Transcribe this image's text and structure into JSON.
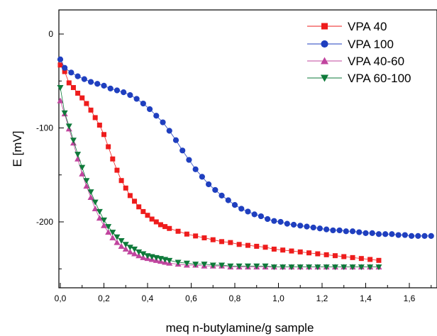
{
  "chart_data": {
    "type": "line",
    "xlabel": "meq n-butylamine/g sample",
    "ylabel": "E [mV]",
    "xlim": [
      0.0,
      1.7
    ],
    "ylim": [
      -270,
      25
    ],
    "x_ticks": [
      "0,0",
      "0,2",
      "0,4",
      "0,6",
      "0,8",
      "1,0",
      "1,2",
      "1,4",
      "1,6"
    ],
    "y_ticks": [
      {
        "value": 0,
        "label": "0"
      },
      {
        "value": -100,
        "label": "-100"
      },
      {
        "value": -200,
        "label": "-200"
      }
    ],
    "grid": false,
    "legend_position": "top-right",
    "series": [
      {
        "name": "VPA 40",
        "color": "#ee1c1c",
        "marker": "square",
        "points": [
          [
            0.0,
            -33
          ],
          [
            0.02,
            -40
          ],
          [
            0.04,
            -52
          ],
          [
            0.06,
            -57
          ],
          [
            0.08,
            -63
          ],
          [
            0.1,
            -68
          ],
          [
            0.12,
            -74
          ],
          [
            0.14,
            -81
          ],
          [
            0.16,
            -89
          ],
          [
            0.18,
            -97
          ],
          [
            0.2,
            -107
          ],
          [
            0.22,
            -120
          ],
          [
            0.24,
            -133
          ],
          [
            0.26,
            -145
          ],
          [
            0.28,
            -156
          ],
          [
            0.3,
            -164
          ],
          [
            0.32,
            -172
          ],
          [
            0.34,
            -178
          ],
          [
            0.36,
            -184
          ],
          [
            0.38,
            -189
          ],
          [
            0.4,
            -193
          ],
          [
            0.42,
            -197
          ],
          [
            0.44,
            -200
          ],
          [
            0.46,
            -203
          ],
          [
            0.48,
            -205
          ],
          [
            0.5,
            -207
          ],
          [
            0.54,
            -210
          ],
          [
            0.58,
            -213
          ],
          [
            0.62,
            -215
          ],
          [
            0.66,
            -217
          ],
          [
            0.7,
            -219
          ],
          [
            0.74,
            -221
          ],
          [
            0.78,
            -222
          ],
          [
            0.82,
            -224
          ],
          [
            0.86,
            -225
          ],
          [
            0.9,
            -226
          ],
          [
            0.94,
            -227
          ],
          [
            0.98,
            -229
          ],
          [
            1.02,
            -230
          ],
          [
            1.06,
            -231
          ],
          [
            1.1,
            -232
          ],
          [
            1.14,
            -233
          ],
          [
            1.18,
            -234
          ],
          [
            1.22,
            -235
          ],
          [
            1.26,
            -236
          ],
          [
            1.3,
            -237
          ],
          [
            1.34,
            -238
          ],
          [
            1.38,
            -239
          ],
          [
            1.42,
            -240
          ],
          [
            1.46,
            -241
          ]
        ]
      },
      {
        "name": "VPA 100",
        "color": "#1f3fbf",
        "marker": "circle",
        "points": [
          [
            0.0,
            -27
          ],
          [
            0.02,
            -36
          ],
          [
            0.05,
            -41
          ],
          [
            0.08,
            -45
          ],
          [
            0.11,
            -48
          ],
          [
            0.14,
            -51
          ],
          [
            0.17,
            -53
          ],
          [
            0.2,
            -55
          ],
          [
            0.23,
            -58
          ],
          [
            0.26,
            -60
          ],
          [
            0.29,
            -62
          ],
          [
            0.32,
            -65
          ],
          [
            0.35,
            -69
          ],
          [
            0.38,
            -74
          ],
          [
            0.41,
            -80
          ],
          [
            0.44,
            -87
          ],
          [
            0.47,
            -94
          ],
          [
            0.5,
            -103
          ],
          [
            0.53,
            -113
          ],
          [
            0.56,
            -124
          ],
          [
            0.59,
            -134
          ],
          [
            0.62,
            -144
          ],
          [
            0.65,
            -152
          ],
          [
            0.68,
            -160
          ],
          [
            0.71,
            -166
          ],
          [
            0.74,
            -172
          ],
          [
            0.77,
            -177
          ],
          [
            0.8,
            -182
          ],
          [
            0.83,
            -186
          ],
          [
            0.86,
            -189
          ],
          [
            0.89,
            -192
          ],
          [
            0.92,
            -194
          ],
          [
            0.95,
            -197
          ],
          [
            0.98,
            -199
          ],
          [
            1.01,
            -200
          ],
          [
            1.04,
            -202
          ],
          [
            1.07,
            -203
          ],
          [
            1.1,
            -204
          ],
          [
            1.13,
            -205
          ],
          [
            1.16,
            -206
          ],
          [
            1.19,
            -207
          ],
          [
            1.22,
            -208
          ],
          [
            1.25,
            -209
          ],
          [
            1.28,
            -209
          ],
          [
            1.31,
            -210
          ],
          [
            1.34,
            -210
          ],
          [
            1.37,
            -211
          ],
          [
            1.4,
            -212
          ],
          [
            1.43,
            -212
          ],
          [
            1.46,
            -213
          ],
          [
            1.49,
            -213
          ],
          [
            1.52,
            -213
          ],
          [
            1.55,
            -214
          ],
          [
            1.58,
            -214
          ],
          [
            1.61,
            -215
          ],
          [
            1.64,
            -215
          ],
          [
            1.67,
            -215
          ],
          [
            1.7,
            -215
          ]
        ]
      },
      {
        "name": "VPA 40-60",
        "color": "#c0449e",
        "marker": "triangle-up",
        "points": [
          [
            0.0,
            -71
          ],
          [
            0.02,
            -85
          ],
          [
            0.04,
            -101
          ],
          [
            0.06,
            -116
          ],
          [
            0.08,
            -133
          ],
          [
            0.1,
            -149
          ],
          [
            0.12,
            -162
          ],
          [
            0.14,
            -174
          ],
          [
            0.16,
            -186
          ],
          [
            0.18,
            -196
          ],
          [
            0.2,
            -204
          ],
          [
            0.22,
            -211
          ],
          [
            0.24,
            -217
          ],
          [
            0.26,
            -222
          ],
          [
            0.28,
            -226
          ],
          [
            0.3,
            -229
          ],
          [
            0.32,
            -232
          ],
          [
            0.34,
            -234
          ],
          [
            0.36,
            -236
          ],
          [
            0.38,
            -238
          ],
          [
            0.4,
            -239
          ],
          [
            0.42,
            -240
          ],
          [
            0.44,
            -241
          ],
          [
            0.46,
            -242
          ],
          [
            0.48,
            -243
          ],
          [
            0.5,
            -244
          ],
          [
            0.54,
            -245
          ],
          [
            0.58,
            -246
          ],
          [
            0.62,
            -246
          ],
          [
            0.66,
            -247
          ],
          [
            0.7,
            -247
          ],
          [
            0.74,
            -247
          ],
          [
            0.78,
            -248
          ],
          [
            0.82,
            -248
          ],
          [
            0.86,
            -248
          ],
          [
            0.9,
            -248
          ],
          [
            0.94,
            -248
          ],
          [
            0.98,
            -248
          ],
          [
            1.02,
            -248
          ],
          [
            1.06,
            -248
          ],
          [
            1.1,
            -248
          ],
          [
            1.14,
            -248
          ],
          [
            1.18,
            -248
          ],
          [
            1.22,
            -248
          ],
          [
            1.26,
            -248
          ],
          [
            1.3,
            -248
          ],
          [
            1.34,
            -248
          ],
          [
            1.38,
            -248
          ],
          [
            1.42,
            -248
          ],
          [
            1.46,
            -248
          ]
        ]
      },
      {
        "name": "VPA 60-100",
        "color": "#0e7a3a",
        "marker": "triangle-down",
        "points": [
          [
            0.0,
            -57
          ],
          [
            0.02,
            -84
          ],
          [
            0.04,
            -98
          ],
          [
            0.06,
            -113
          ],
          [
            0.08,
            -128
          ],
          [
            0.1,
            -142
          ],
          [
            0.12,
            -156
          ],
          [
            0.14,
            -168
          ],
          [
            0.16,
            -179
          ],
          [
            0.18,
            -189
          ],
          [
            0.2,
            -198
          ],
          [
            0.22,
            -205
          ],
          [
            0.24,
            -211
          ],
          [
            0.26,
            -216
          ],
          [
            0.28,
            -220
          ],
          [
            0.3,
            -224
          ],
          [
            0.32,
            -227
          ],
          [
            0.34,
            -229
          ],
          [
            0.36,
            -232
          ],
          [
            0.38,
            -234
          ],
          [
            0.4,
            -236
          ],
          [
            0.42,
            -237
          ],
          [
            0.44,
            -238
          ],
          [
            0.46,
            -239
          ],
          [
            0.48,
            -240
          ],
          [
            0.5,
            -241
          ],
          [
            0.54,
            -243
          ],
          [
            0.58,
            -244
          ],
          [
            0.62,
            -245
          ],
          [
            0.66,
            -245
          ],
          [
            0.7,
            -246
          ],
          [
            0.74,
            -246
          ],
          [
            0.78,
            -247
          ],
          [
            0.82,
            -247
          ],
          [
            0.86,
            -247
          ],
          [
            0.9,
            -247
          ],
          [
            0.94,
            -247
          ],
          [
            0.98,
            -248
          ],
          [
            1.02,
            -248
          ],
          [
            1.06,
            -248
          ],
          [
            1.1,
            -248
          ],
          [
            1.14,
            -248
          ],
          [
            1.18,
            -248
          ],
          [
            1.22,
            -248
          ],
          [
            1.26,
            -248
          ],
          [
            1.3,
            -248
          ],
          [
            1.34,
            -248
          ],
          [
            1.38,
            -248
          ],
          [
            1.42,
            -248
          ],
          [
            1.46,
            -248
          ]
        ]
      }
    ]
  }
}
